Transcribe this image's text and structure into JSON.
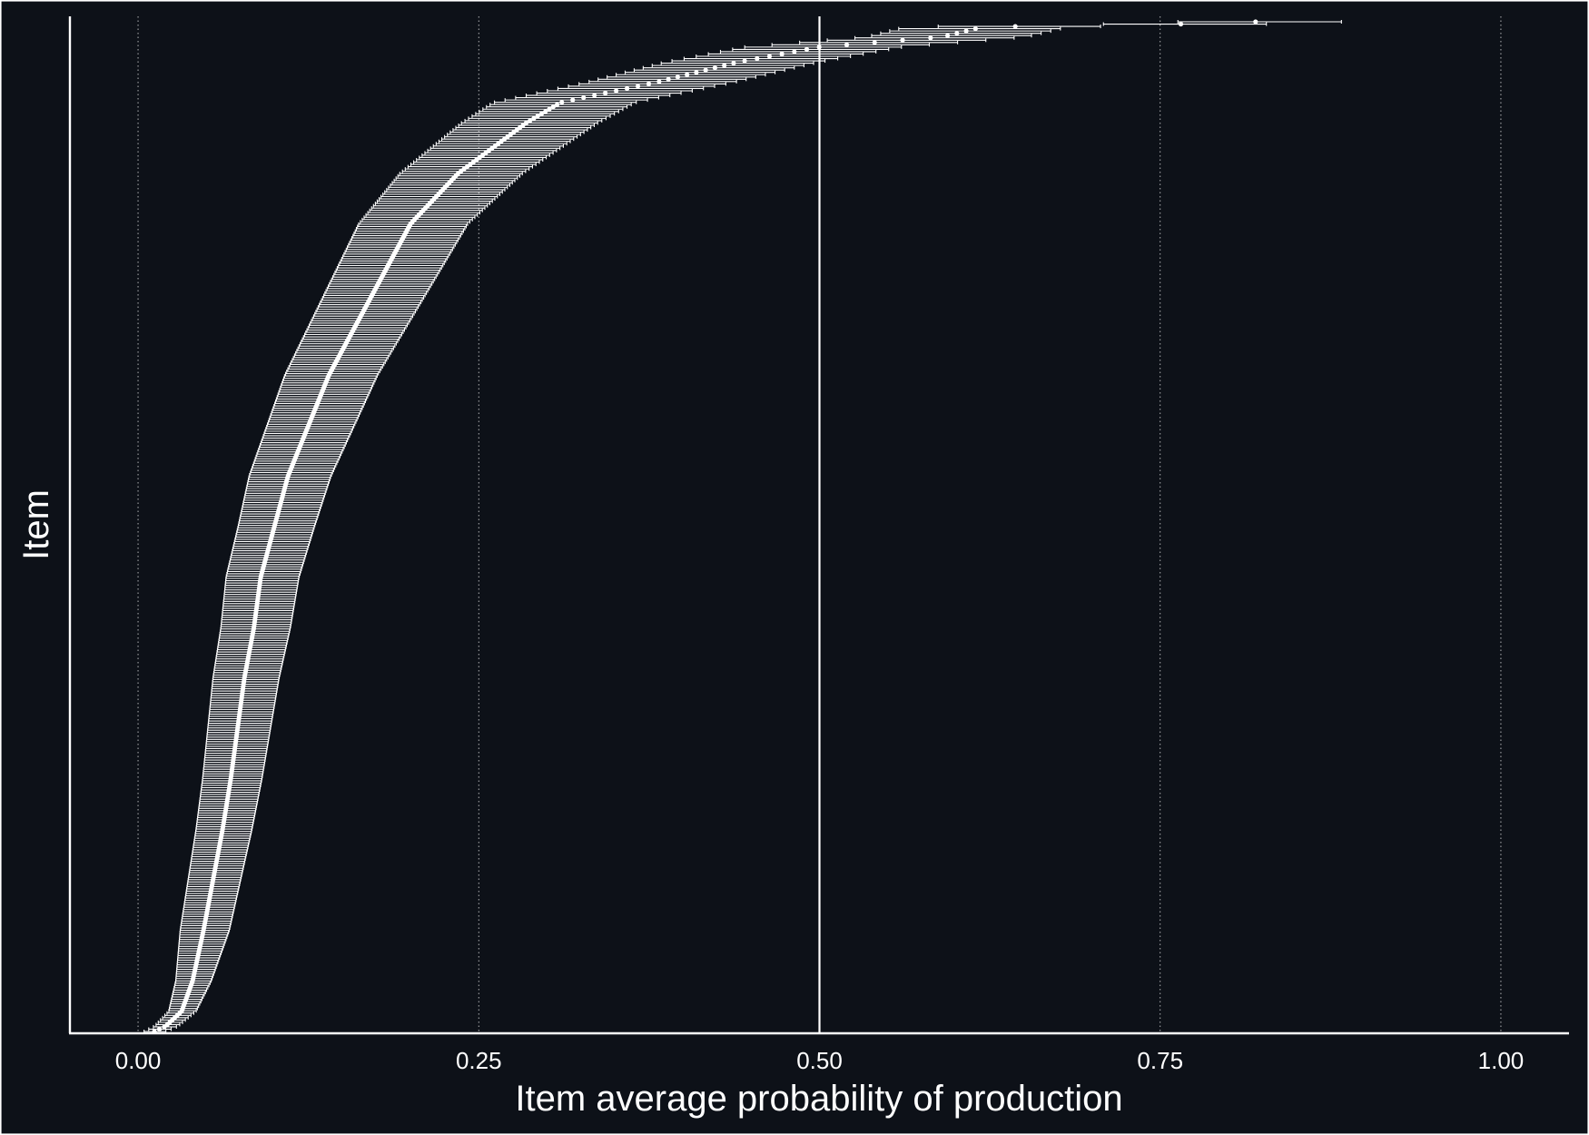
{
  "chart_data": {
    "type": "scatter",
    "subtype": "point-range (dot plot with horizontal error bars, items sorted by estimate)",
    "xlabel": "Item average probability of production",
    "ylabel": "Item",
    "xlim": [
      -0.05,
      1.05
    ],
    "x_ticks": [
      0.0,
      0.25,
      0.5,
      0.75,
      1.0
    ],
    "x_tick_labels": [
      "0.00",
      "0.25",
      "0.50",
      "0.75",
      "1.00"
    ],
    "reference_line_x": 0.5,
    "grid": "vertical dotted major gridlines",
    "y_tick_labels": "none",
    "n_items": 440,
    "colors": {
      "background": "#0d1118",
      "foreground": "#ffffff"
    },
    "series": [
      {
        "estimate_quantiles": [
          [
            0.0,
            0.012
          ],
          [
            0.005,
            0.02
          ],
          [
            0.02,
            0.032
          ],
          [
            0.05,
            0.04
          ],
          [
            0.1,
            0.048
          ],
          [
            0.15,
            0.055
          ],
          [
            0.2,
            0.062
          ],
          [
            0.25,
            0.068
          ],
          [
            0.3,
            0.073
          ],
          [
            0.35,
            0.078
          ],
          [
            0.4,
            0.085
          ],
          [
            0.45,
            0.09
          ],
          [
            0.5,
            0.1
          ],
          [
            0.55,
            0.11
          ],
          [
            0.6,
            0.125
          ],
          [
            0.65,
            0.14
          ],
          [
            0.7,
            0.16
          ],
          [
            0.75,
            0.18
          ],
          [
            0.8,
            0.2
          ],
          [
            0.85,
            0.235
          ],
          [
            0.9,
            0.285
          ],
          [
            0.92,
            0.31
          ],
          [
            0.94,
            0.38
          ],
          [
            0.96,
            0.44
          ],
          [
            0.975,
            0.5
          ],
          [
            0.985,
            0.59
          ],
          [
            0.995,
            0.62
          ],
          [
            0.998,
            0.78
          ],
          [
            1.0,
            0.82
          ]
        ],
        "interval_halfwidth_quantiles": [
          [
            0.0,
            0.008
          ],
          [
            0.1,
            0.018
          ],
          [
            0.5,
            0.028
          ],
          [
            0.8,
            0.04
          ],
          [
            0.95,
            0.055
          ],
          [
            1.0,
            0.06
          ]
        ]
      }
    ]
  }
}
